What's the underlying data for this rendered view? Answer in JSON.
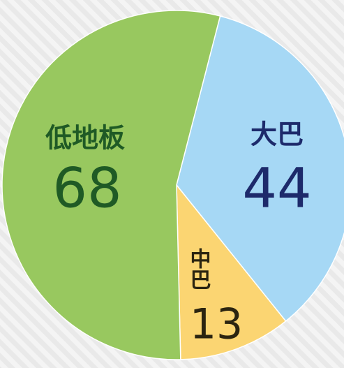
{
  "chart_data": {
    "type": "pie",
    "categories": [
      "大巴",
      "中巴",
      "低地板"
    ],
    "values": [
      44,
      13,
      68
    ],
    "colors": [
      "#a6d8f5",
      "#fbd572",
      "#98c85f"
    ],
    "label_colors": [
      "#1d2a6b",
      "#2b2410",
      "#1f5a25"
    ]
  }
}
